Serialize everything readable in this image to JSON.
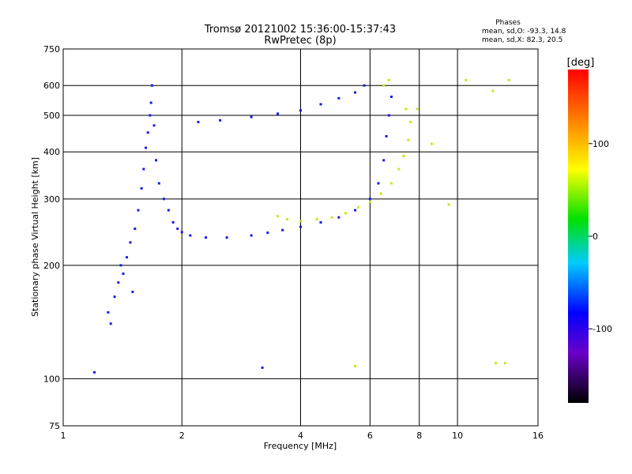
{
  "chart_data": {
    "type": "scatter",
    "title": "Tromsø 20121002 15:36:00-15:37:43",
    "subtitle": "RwPretec (8p)",
    "xlabel": "Frequency [MHz]",
    "ylabel": "Stationary phase Virtual Height [km]",
    "x_scale": "log",
    "y_scale": "log",
    "xlim": [
      1,
      16
    ],
    "ylim": [
      75,
      750
    ],
    "x_ticks": [
      1,
      2,
      4,
      6,
      8,
      10,
      16
    ],
    "y_ticks": [
      75,
      100,
      200,
      300,
      400,
      500,
      600,
      750
    ],
    "grid": true,
    "legend": {
      "title": "Phases",
      "lines": [
        "mean, sd,O: -93.3, 14.8",
        "mean, sd,X:  82.3, 20.5"
      ]
    },
    "colorbar": {
      "label": "[deg]",
      "range": [
        -180,
        180
      ],
      "ticks": [
        100,
        0,
        -100
      ],
      "colormap": "rainbow"
    },
    "series": [
      {
        "name": "O",
        "phase_mean": -93.3,
        "phase_sd": 14.8,
        "points": [
          [
            1.3,
            150
          ],
          [
            1.32,
            140
          ],
          [
            1.35,
            165
          ],
          [
            1.38,
            180
          ],
          [
            1.4,
            200
          ],
          [
            1.42,
            190
          ],
          [
            1.45,
            210
          ],
          [
            1.48,
            230
          ],
          [
            1.5,
            170
          ],
          [
            1.52,
            250
          ],
          [
            1.55,
            280
          ],
          [
            1.58,
            320
          ],
          [
            1.6,
            360
          ],
          [
            1.62,
            410
          ],
          [
            1.64,
            450
          ],
          [
            1.66,
            500
          ],
          [
            1.67,
            540
          ],
          [
            1.68,
            600
          ],
          [
            1.7,
            470
          ],
          [
            1.72,
            380
          ],
          [
            1.75,
            330
          ],
          [
            1.8,
            300
          ],
          [
            1.85,
            280
          ],
          [
            1.9,
            260
          ],
          [
            1.95,
            250
          ],
          [
            2.0,
            245
          ],
          [
            2.1,
            240
          ],
          [
            2.3,
            237
          ],
          [
            2.6,
            237
          ],
          [
            3.0,
            240
          ],
          [
            3.3,
            244
          ],
          [
            3.6,
            248
          ],
          [
            4.0,
            253
          ],
          [
            4.5,
            260
          ],
          [
            5.0,
            268
          ],
          [
            5.5,
            280
          ],
          [
            6.0,
            300
          ],
          [
            6.3,
            330
          ],
          [
            6.5,
            380
          ],
          [
            6.6,
            440
          ],
          [
            6.7,
            500
          ],
          [
            6.8,
            560
          ],
          [
            2.2,
            480
          ],
          [
            2.5,
            485
          ],
          [
            3.0,
            495
          ],
          [
            3.5,
            505
          ],
          [
            4.0,
            515
          ],
          [
            4.5,
            535
          ],
          [
            5.0,
            555
          ],
          [
            5.5,
            575
          ],
          [
            5.8,
            600
          ],
          [
            1.2,
            104
          ],
          [
            3.2,
            107
          ]
        ]
      },
      {
        "name": "X",
        "phase_mean": 82.3,
        "phase_sd": 20.5,
        "points": [
          [
            3.5,
            270
          ],
          [
            3.7,
            265
          ],
          [
            4.0,
            262
          ],
          [
            4.4,
            265
          ],
          [
            4.8,
            268
          ],
          [
            5.2,
            275
          ],
          [
            5.6,
            285
          ],
          [
            6.0,
            295
          ],
          [
            6.4,
            310
          ],
          [
            6.8,
            330
          ],
          [
            7.1,
            360
          ],
          [
            7.3,
            390
          ],
          [
            7.5,
            430
          ],
          [
            7.6,
            480
          ],
          [
            7.4,
            520
          ],
          [
            6.5,
            600
          ],
          [
            6.7,
            620
          ],
          [
            7.9,
            520
          ],
          [
            8.6,
            420
          ],
          [
            9.5,
            290
          ],
          [
            10.5,
            620
          ],
          [
            12.3,
            580
          ],
          [
            13.5,
            620
          ],
          [
            12.5,
            110
          ],
          [
            13.2,
            110
          ],
          [
            5.5,
            108
          ]
        ]
      }
    ]
  }
}
